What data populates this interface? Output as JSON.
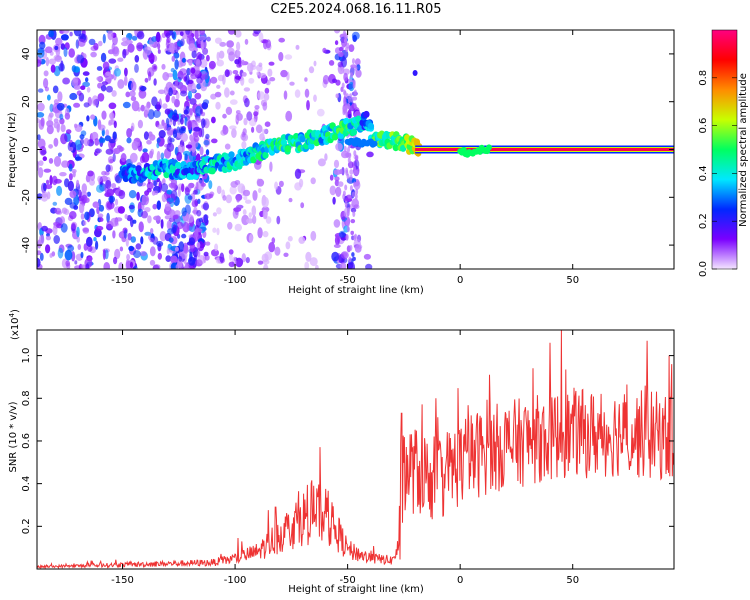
{
  "title": "C2E5.2024.068.16.11.R05",
  "chart_data": [
    {
      "type": "heatmap",
      "name": "spectrogram",
      "xlabel": "Height of straight line (km)",
      "ylabel": "Frequency (Hz)",
      "xlim": [
        -188,
        95
      ],
      "ylim": [
        -50,
        50
      ],
      "xticks": [
        -150,
        -100,
        -50,
        0,
        50
      ],
      "xtick_labels": [
        "-150",
        "-100",
        "-50",
        "0",
        "50"
      ],
      "yticks": [
        -40,
        -20,
        0,
        20,
        40
      ],
      "ytick_labels": [
        "-40",
        "-20",
        "0",
        "20",
        "40"
      ],
      "colorbar": {
        "label": "Normalized spectral amplitude",
        "range": [
          0,
          1
        ],
        "ticks": [
          0.0,
          0.2,
          0.4,
          0.6,
          0.8
        ],
        "tick_labels": [
          "0.0",
          "0.2",
          "0.4",
          "0.6",
          "0.8"
        ],
        "colors": [
          "#f4e6ff",
          "#7a00ff",
          "#0028ff",
          "#00e8ff",
          "#00ff60",
          "#c8ff00",
          "#ff8c00",
          "#ff0000",
          "#ff0080"
        ]
      },
      "ridge": {
        "x": [
          -145,
          -130,
          -120,
          -110,
          -100,
          -90,
          -80,
          -70,
          -60,
          -50,
          -42,
          -38,
          -30,
          -22,
          -18,
          0,
          5,
          10,
          20,
          50,
          95
        ],
        "freq_hz": [
          -10,
          -8,
          -9,
          -6,
          -5,
          -1,
          2,
          3,
          6,
          9,
          12,
          5,
          4,
          2,
          0.5,
          0,
          -2,
          0,
          0,
          0,
          0
        ],
        "amplitude": [
          0.3,
          0.35,
          0.3,
          0.35,
          0.35,
          0.4,
          0.45,
          0.4,
          0.4,
          0.45,
          0.3,
          0.45,
          0.5,
          0.6,
          0.95,
          0.95,
          0.5,
          0.5,
          0.95,
          0.95,
          0.95
        ]
      }
    },
    {
      "type": "line",
      "name": "snr",
      "xlabel": "Height of straight line (km)",
      "ylabel": "SNR (10 * v/v)",
      "exponent_label": "(x10",
      "exponent_sup": "4",
      "exponent_close": ")",
      "xlim": [
        -188,
        95
      ],
      "ylim": [
        0,
        1.12
      ],
      "xticks": [
        -150,
        -100,
        -50,
        0,
        50
      ],
      "xtick_labels": [
        "-150",
        "-100",
        "-50",
        "0",
        "50"
      ],
      "yticks": [
        0.2,
        0.4,
        0.6,
        0.8,
        1.0
      ],
      "ytick_labels": [
        "0.2",
        "0.4",
        "0.6",
        "0.8",
        "1.0"
      ],
      "color": "#ee3333",
      "envelope": {
        "x": [
          -188,
          -150,
          -110,
          -100,
          -90,
          -80,
          -70,
          -62,
          -55,
          -50,
          -40,
          -30,
          -27,
          -25,
          -20,
          -10,
          0,
          10,
          20,
          30,
          40,
          50,
          60,
          70,
          80,
          95
        ],
        "y": [
          0.01,
          0.02,
          0.03,
          0.05,
          0.08,
          0.16,
          0.24,
          0.26,
          0.18,
          0.09,
          0.05,
          0.04,
          0.12,
          0.48,
          0.46,
          0.42,
          0.5,
          0.55,
          0.58,
          0.6,
          0.62,
          0.64,
          0.63,
          0.64,
          0.63,
          0.62
        ]
      },
      "peaks": [
        {
          "x": -82,
          "y": 0.29
        },
        {
          "x": -65,
          "y": 0.39
        },
        {
          "x": -26,
          "y": 0.73
        },
        {
          "x": 13,
          "y": 0.91
        },
        {
          "x": 40,
          "y": 1.06
        },
        {
          "x": 45,
          "y": 1.12
        },
        {
          "x": 83,
          "y": 1.07
        },
        {
          "x": 94,
          "y": 0.96
        }
      ]
    }
  ]
}
